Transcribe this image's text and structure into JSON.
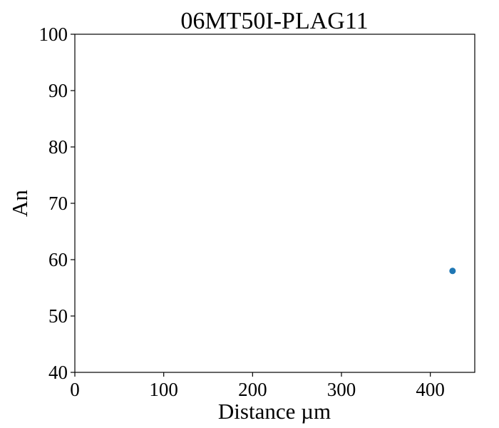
{
  "chart_data": {
    "type": "scatter",
    "title": "06MT50I-PLAG11",
    "xlabel": "Distance µm",
    "ylabel": "An",
    "xlim": [
      0,
      450
    ],
    "ylim": [
      40,
      100
    ],
    "xticks": [
      0,
      100,
      200,
      300,
      400
    ],
    "yticks": [
      40,
      50,
      60,
      70,
      80,
      90,
      100
    ],
    "grid": false,
    "legend": "none",
    "series": [
      {
        "color": "#1f77b4",
        "points": [
          {
            "x": 425,
            "y": 58
          }
        ]
      }
    ]
  }
}
